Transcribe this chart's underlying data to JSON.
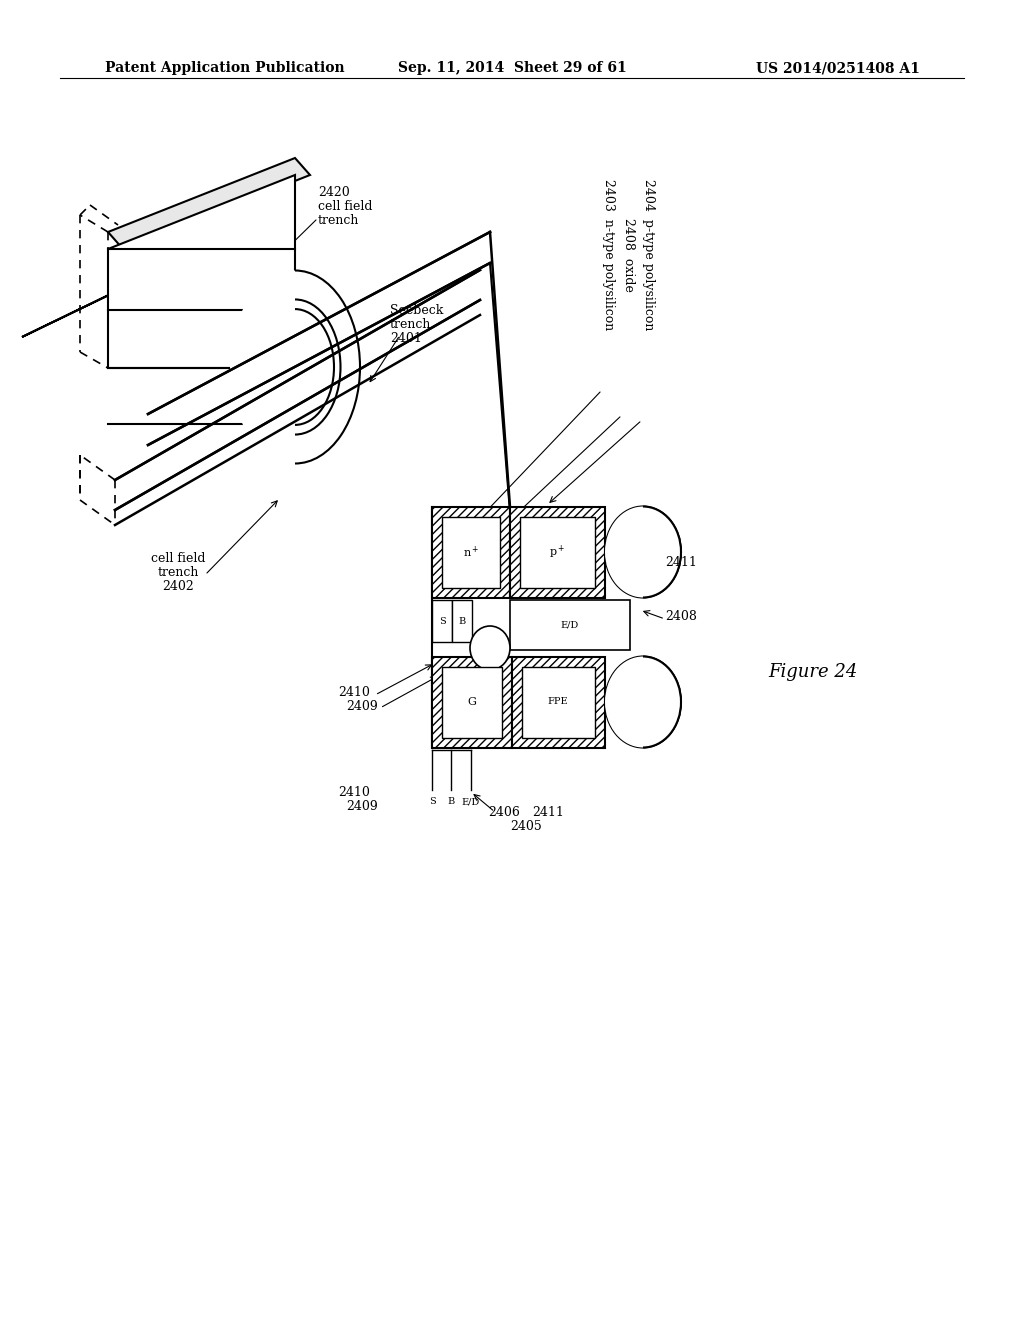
{
  "background_color": "#ffffff",
  "header_left": "Patent Application Publication",
  "header_mid": "Sep. 11, 2014  Sheet 29 of 61",
  "header_right": "US 2014/0251408 A1",
  "figure_label": "Figure 24",
  "header_fontsize": 10,
  "label_fontsize": 9,
  "small_fontsize": 7,
  "fig_fontsize": 13
}
